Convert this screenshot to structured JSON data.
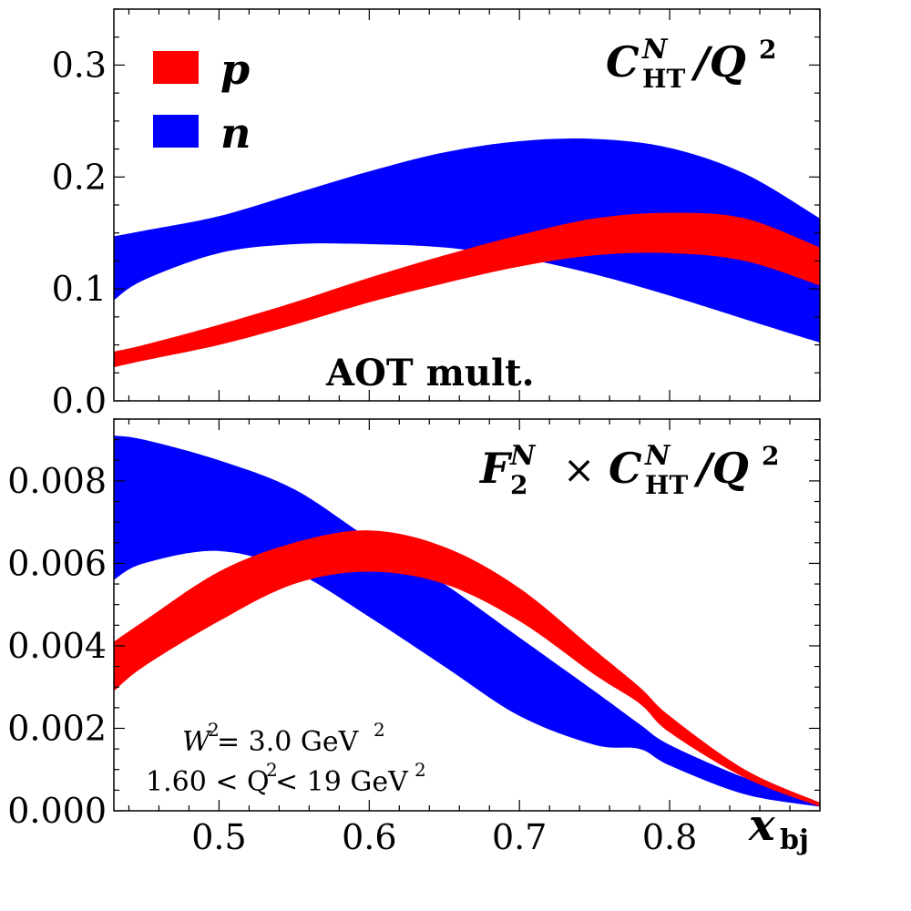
{
  "chart_data": [
    {
      "type": "area",
      "panel": "top",
      "title": "C_HT^N / Q^2",
      "title_parts": {
        "main": "C",
        "sub": "HT",
        "sup": "N",
        "rest": "/Q",
        "rest_sup": "2"
      },
      "annotation": "AOT mult.",
      "xlim": [
        0.43,
        0.9
      ],
      "ylim": [
        0.0,
        0.35
      ],
      "yticks": [
        0.0,
        0.1,
        0.2,
        0.3
      ],
      "ytick_labels": [
        "0.0",
        "0.1",
        "0.2",
        "0.3"
      ],
      "legend": {
        "placement": "top-left",
        "entries": [
          "p",
          "n"
        ]
      },
      "x": [
        0.43,
        0.45,
        0.5,
        0.55,
        0.6,
        0.65,
        0.7,
        0.75,
        0.8,
        0.85,
        0.9
      ],
      "series": [
        {
          "name": "n",
          "color": "#0000ff",
          "upper": [
            0.147,
            0.152,
            0.165,
            0.185,
            0.205,
            0.222,
            0.232,
            0.234,
            0.226,
            0.203,
            0.163
          ],
          "lower": [
            0.09,
            0.108,
            0.132,
            0.14,
            0.14,
            0.137,
            0.128,
            0.113,
            0.094,
            0.073,
            0.052
          ]
        },
        {
          "name": "p",
          "color": "#ff0000",
          "upper": [
            0.044,
            0.05,
            0.068,
            0.088,
            0.11,
            0.13,
            0.148,
            0.163,
            0.168,
            0.163,
            0.137
          ],
          "lower": [
            0.03,
            0.036,
            0.05,
            0.068,
            0.088,
            0.105,
            0.12,
            0.13,
            0.132,
            0.125,
            0.103
          ]
        }
      ]
    },
    {
      "type": "area",
      "panel": "bottom",
      "title": "F_2^N × C_HT^N / Q^2",
      "xlabel": "x_bj",
      "xlim": [
        0.43,
        0.9
      ],
      "ylim": [
        0.0,
        0.0095
      ],
      "xticks": [
        0.5,
        0.6,
        0.7,
        0.8
      ],
      "xtick_labels": [
        "0.5",
        "0.6",
        "0.7",
        "0.8"
      ],
      "yticks": [
        0.0,
        0.002,
        0.004,
        0.006,
        0.008
      ],
      "ytick_labels": [
        "0.000",
        "0.002",
        "0.004",
        "0.006",
        "0.008"
      ],
      "annotations": [
        "W^2 = 3.0 GeV^2",
        "1.60 < Q^2 < 19 GeV^2"
      ],
      "x": [
        0.43,
        0.45,
        0.5,
        0.55,
        0.6,
        0.65,
        0.7,
        0.75,
        0.78,
        0.8,
        0.85,
        0.9
      ],
      "series": [
        {
          "name": "n",
          "color": "#0000ff",
          "upper": [
            0.0091,
            0.009,
            0.0085,
            0.0078,
            0.0066,
            0.0055,
            0.0042,
            0.0029,
            0.0021,
            0.0016,
            0.0008,
            0.0002
          ],
          "lower": [
            0.0056,
            0.006,
            0.0063,
            0.0058,
            0.0047,
            0.0035,
            0.0023,
            0.0016,
            0.0015,
            0.0011,
            0.0004,
            0.0001
          ]
        },
        {
          "name": "p",
          "color": "#ff0000",
          "upper": [
            0.0041,
            0.0046,
            0.0058,
            0.0065,
            0.0068,
            0.0064,
            0.0054,
            0.0039,
            0.003,
            0.0023,
            0.001,
            0.0002
          ],
          "lower": [
            0.0029,
            0.0035,
            0.0046,
            0.0055,
            0.0058,
            0.0055,
            0.0046,
            0.0033,
            0.0026,
            0.0019,
            0.0008,
            0.0001
          ]
        }
      ]
    }
  ],
  "texts": {
    "legend_p": "p",
    "legend_n": "n",
    "top_title_C": "C",
    "top_title_N": "N",
    "top_title_HT": "HT",
    "top_title_rest": "/Q",
    "top_title_2": "2",
    "aot": "AOT mult.",
    "bot_title_F": "F",
    "bot_title_F_sub": "2",
    "bot_title_F_sup": "N",
    "bot_title_times": "×",
    "bot_title_C": "C",
    "bot_title_N": "N",
    "bot_title_HT": "HT",
    "bot_title_rest": "/Q",
    "bot_title_2": "2",
    "w2_line_a": "W",
    "w2_line_sup": "2",
    "w2_line_b": " = 3.0 GeV",
    "w2_line_sup2": "2",
    "q2_line_a": "1.60 < Q",
    "q2_line_sup": "2",
    "q2_line_b": " < 19 GeV",
    "q2_line_sup2": "2",
    "xlabel_x": "x",
    "xlabel_sub": "bj"
  }
}
